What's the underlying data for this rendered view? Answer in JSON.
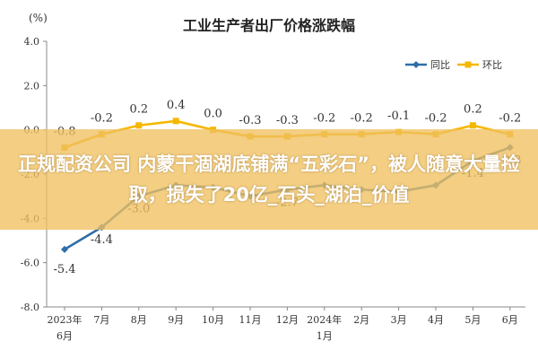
{
  "chart_data": {
    "type": "line",
    "title": "工业生产者出厂价格涨跌幅",
    "unit_label": "(%)",
    "y_ticks": [
      "4.0",
      "2.0",
      "0.0",
      "-2.0",
      "-4.0",
      "-6.0",
      "-8.0"
    ],
    "ylim": [
      -8,
      4
    ],
    "grid": false,
    "legend_position": "top-right",
    "categories": [
      "2023年\n6月",
      "7月",
      "8月",
      "9月",
      "10月",
      "11月",
      "12月",
      "2024年\n1月",
      "2月",
      "3月",
      "4月",
      "5月",
      "6月"
    ],
    "series": [
      {
        "name": "同比",
        "color": "#2e6da8",
        "values": [
          -5.4,
          -4.4,
          -3.0,
          -2.5,
          -2.6,
          -3.0,
          -2.7,
          -2.5,
          -2.7,
          -2.8,
          -2.5,
          -1.4,
          -0.8
        ],
        "labels": [
          "-5.4",
          "-4.4",
          "-3.0",
          null,
          null,
          null,
          "-2.7",
          null,
          null,
          null,
          null,
          "-1.4",
          "-0.8"
        ]
      },
      {
        "name": "环比",
        "color": "#f5b800",
        "values": [
          -0.8,
          -0.2,
          0.2,
          0.4,
          0.0,
          -0.3,
          -0.3,
          -0.2,
          -0.2,
          -0.1,
          -0.2,
          0.2,
          -0.2
        ],
        "labels": [
          "-0.8",
          "-0.2",
          "0.2",
          "0.4",
          "0.0",
          "-0.3",
          "-0.3",
          "-0.2",
          "-0.2",
          "-0.1",
          "-0.2",
          "0.2",
          "-0.2"
        ]
      }
    ]
  },
  "overlay": {
    "headline": "正规配资公司 内蒙干涸湖底铺满“五彩石”，被人随意大量捡取，损失了20亿_石头_湖泊_价值"
  }
}
